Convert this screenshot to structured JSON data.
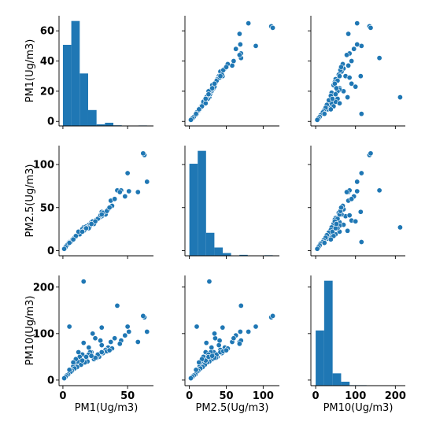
{
  "chart_data": {
    "type": "pairplot",
    "variables": [
      "PM1(Ug/m3)",
      "PM2.5(Ug/m3)",
      "PM10(Ug/m3)"
    ],
    "colors": {
      "marker": "#1f77b4",
      "marker_edge": "#ffffff",
      "axis": "#000000"
    },
    "grid": false,
    "axes": [
      {
        "variable": "PM1(Ug/m3)",
        "range": [
          -3,
          70
        ],
        "ticks": [
          0,
          20,
          40,
          60
        ],
        "x_ticks": [
          0,
          50
        ]
      },
      {
        "variable": "PM2.5(Ug/m3)",
        "range": [
          -6,
          122
        ],
        "ticks": [
          0,
          50,
          100
        ],
        "x_ticks": [
          0,
          50,
          100
        ]
      },
      {
        "variable": "PM10(Ug/m3)",
        "range": [
          -12,
          225
        ],
        "ticks": [
          0,
          100,
          200
        ],
        "x_ticks": [
          0,
          100,
          200
        ]
      }
    ],
    "histograms": [
      {
        "variable": "PM1(Ug/m3)",
        "bin_edges": [
          0,
          6.5,
          13,
          19.5,
          26,
          32.5,
          39,
          45.5,
          52,
          58.5,
          65
        ],
        "counts": [
          51,
          66,
          33,
          10,
          1,
          2,
          0.4,
          0.2,
          0,
          0.3
        ]
      },
      {
        "variable": "PM2.5(Ug/m3)",
        "bin_edges": [
          0,
          11.3,
          22.6,
          33.9,
          45.2,
          56.5,
          67.8,
          79.1,
          90.4,
          101.7,
          113
        ],
        "counts": [
          100,
          114,
          25,
          9,
          3,
          0.3,
          1,
          0.2,
          0,
          0.6
        ]
      },
      {
        "variable": "PM10(Ug/m3)",
        "bin_edges": [
          0,
          21.3,
          42.6,
          63.9,
          85.2,
          106.5,
          127.8,
          149.1,
          170.4,
          191.7,
          213
        ],
        "counts": [
          112,
          213,
          25,
          8,
          1,
          1,
          0.5,
          0,
          0,
          0.3
        ]
      }
    ],
    "points": [
      [
        63,
        111,
        135
      ],
      [
        62,
        113,
        138
      ],
      [
        58,
        68,
        82
      ],
      [
        50,
        90,
        115
      ],
      [
        42,
        70,
        160
      ],
      [
        37,
        58,
        82
      ],
      [
        30,
        45,
        113
      ],
      [
        16,
        27,
        212
      ],
      [
        5,
        10,
        115
      ],
      [
        51,
        69,
        104
      ],
      [
        65,
        80,
        104
      ],
      [
        48,
        63,
        96
      ],
      [
        10,
        16,
        35
      ],
      [
        12,
        20,
        40
      ],
      [
        15,
        25,
        55
      ],
      [
        20,
        30,
        70
      ],
      [
        25,
        35,
        90
      ],
      [
        8,
        14,
        30
      ],
      [
        18,
        28,
        45
      ],
      [
        22,
        33,
        60
      ],
      [
        30,
        40,
        75
      ],
      [
        35,
        48,
        70
      ],
      [
        28,
        38,
        50
      ],
      [
        24,
        31,
        45
      ],
      [
        40,
        60,
        90
      ],
      [
        45,
        70,
        85
      ],
      [
        33,
        42,
        65
      ],
      [
        26,
        36,
        48
      ],
      [
        19,
        27,
        40
      ],
      [
        17,
        24,
        38
      ],
      [
        14,
        21,
        33
      ],
      [
        11,
        18,
        28
      ],
      [
        9,
        15,
        25
      ],
      [
        7,
        12,
        20
      ],
      [
        6,
        10,
        18
      ],
      [
        4,
        8,
        12
      ],
      [
        3,
        6,
        10
      ],
      [
        2,
        4,
        7
      ],
      [
        1,
        2,
        4
      ],
      [
        13,
        19,
        50
      ],
      [
        21,
        29,
        60
      ],
      [
        27,
        37,
        55
      ],
      [
        31,
        44,
        58
      ],
      [
        38,
        52,
        68
      ],
      [
        16,
        23,
        80
      ],
      [
        23,
        34,
        100
      ],
      [
        12,
        22,
        60
      ],
      [
        20,
        26,
        55
      ],
      [
        29,
        41,
        85
      ],
      [
        44,
        68,
        78
      ],
      [
        15,
        22,
        42
      ],
      [
        18,
        26,
        50
      ],
      [
        25,
        34,
        48
      ],
      [
        10,
        17,
        45
      ],
      [
        8,
        13,
        38
      ],
      [
        5,
        9,
        22
      ],
      [
        22,
        31,
        52
      ],
      [
        30,
        42,
        60
      ],
      [
        34,
        46,
        62
      ],
      [
        36,
        50,
        64
      ]
    ]
  }
}
